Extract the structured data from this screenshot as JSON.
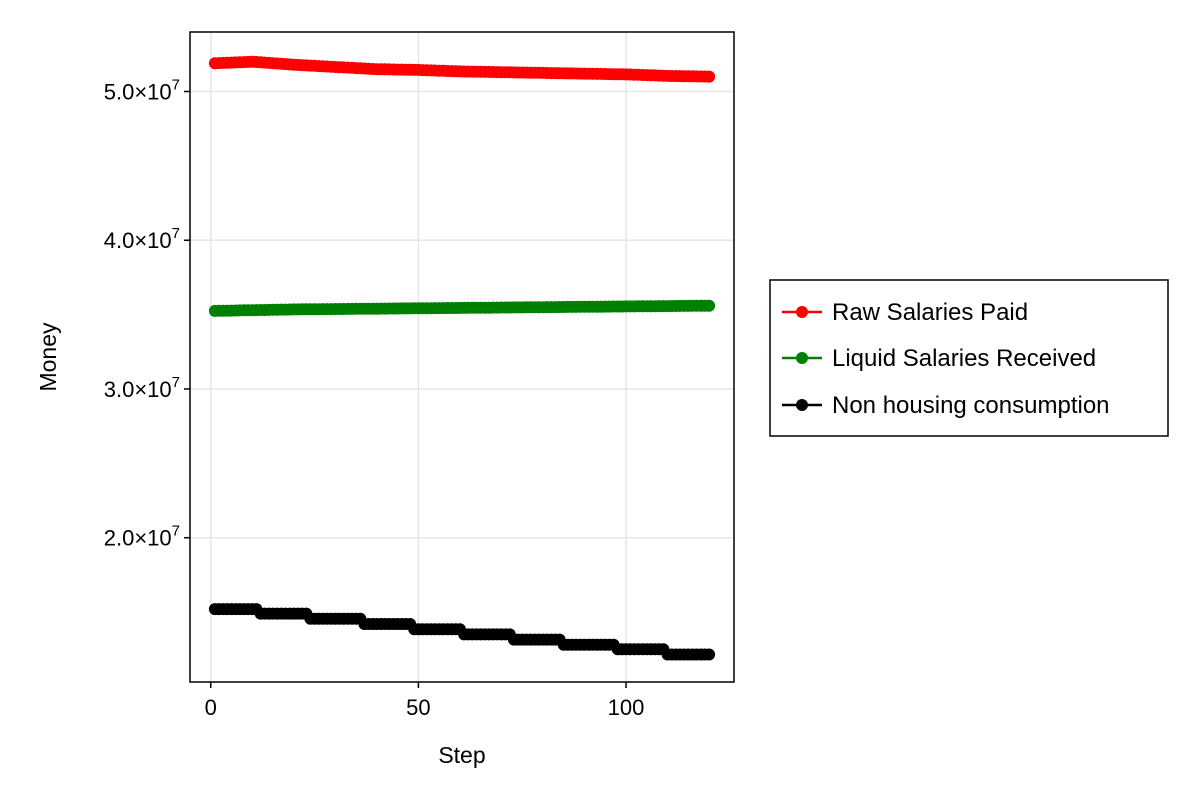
{
  "chart_data": {
    "type": "scatter",
    "title": "",
    "xlabel": "Step",
    "ylabel": "Money",
    "xlim": [
      -5,
      126
    ],
    "ylim": [
      10300000,
      54000000
    ],
    "x_ticks": [
      0,
      50,
      100
    ],
    "x_tick_labels": [
      "0",
      "50",
      "100"
    ],
    "y_ticks": [
      20000000,
      30000000,
      40000000,
      50000000
    ],
    "y_tick_labels": [
      {
        "mantissa": "2.0×10",
        "exp": "7"
      },
      {
        "mantissa": "3.0×10",
        "exp": "7"
      },
      {
        "mantissa": "4.0×10",
        "exp": "7"
      },
      {
        "mantissa": "5.0×10",
        "exp": "7"
      }
    ],
    "grid": true,
    "legend_position": "outside-right",
    "x": {
      "start": 1,
      "end": 120,
      "step": 1
    },
    "series": [
      {
        "name": "Raw Salaries Paid",
        "color": "#ff0000",
        "anchors": [
          [
            1,
            51900000
          ],
          [
            10,
            52000000
          ],
          [
            20,
            51800000
          ],
          [
            30,
            51650000
          ],
          [
            40,
            51500000
          ],
          [
            50,
            51450000
          ],
          [
            60,
            51350000
          ],
          [
            70,
            51300000
          ],
          [
            80,
            51250000
          ],
          [
            90,
            51200000
          ],
          [
            100,
            51150000
          ],
          [
            110,
            51050000
          ],
          [
            120,
            51000000
          ]
        ]
      },
      {
        "name": "Liquid Salaries Received",
        "color": "#008000",
        "anchors": [
          [
            1,
            35250000
          ],
          [
            20,
            35350000
          ],
          [
            40,
            35400000
          ],
          [
            60,
            35450000
          ],
          [
            80,
            35500000
          ],
          [
            100,
            35550000
          ],
          [
            120,
            35600000
          ]
        ]
      },
      {
        "name": "Non housing consumption",
        "color": "#000000",
        "steps": [
          [
            1,
            12,
            15200000
          ],
          [
            12,
            24,
            14900000
          ],
          [
            24,
            37,
            14550000
          ],
          [
            37,
            49,
            14200000
          ],
          [
            49,
            61,
            13850000
          ],
          [
            61,
            73,
            13500000
          ],
          [
            73,
            85,
            13150000
          ],
          [
            85,
            98,
            12800000
          ],
          [
            98,
            110,
            12500000
          ],
          [
            110,
            121,
            12150000
          ]
        ]
      }
    ]
  }
}
